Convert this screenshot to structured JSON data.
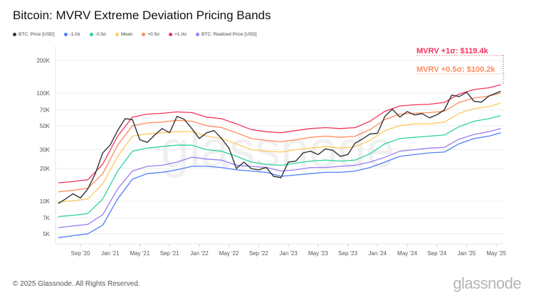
{
  "chart_data": {
    "type": "line",
    "title": "Bitcoin: MVRV Extreme Deviation Pricing Bands",
    "y_scale": "log",
    "ylim": [
      4000,
      260000
    ],
    "y_ticks": [
      {
        "v": 200000,
        "label": "200K"
      },
      {
        "v": 100000,
        "label": "100K"
      },
      {
        "v": 70000,
        "label": "70K"
      },
      {
        "v": 50000,
        "label": "50K"
      },
      {
        "v": 30000,
        "label": "30K"
      },
      {
        "v": 20000,
        "label": "20K"
      },
      {
        "v": 10000,
        "label": "10K"
      },
      {
        "v": 7000,
        "label": "7K"
      },
      {
        "v": 5000,
        "label": "5K"
      }
    ],
    "x_ticks": [
      "Sep '20",
      "Jan '21",
      "May '21",
      "Sep '21",
      "Jan '22",
      "May '22",
      "Sep '22",
      "Jan '23",
      "May '23",
      "Sep '23",
      "Jan '24",
      "May '24",
      "Sep '24",
      "Jan '25",
      "May '25"
    ],
    "x_tick_dates": [
      "2020-09",
      "2021-01",
      "2021-05",
      "2021-09",
      "2022-01",
      "2022-05",
      "2022-09",
      "2023-01",
      "2023-05",
      "2023-09",
      "2024-01",
      "2024-05",
      "2024-09",
      "2025-01",
      "2025-05"
    ],
    "grid": true,
    "legend": "top-left",
    "price_dates": [
      "2020-06",
      "2020-07",
      "2020-08",
      "2020-09",
      "2020-10",
      "2020-11",
      "2020-12",
      "2021-01",
      "2021-02",
      "2021-03",
      "2021-04",
      "2021-05",
      "2021-06",
      "2021-07",
      "2021-08",
      "2021-09",
      "2021-10",
      "2021-11",
      "2021-12",
      "2022-01",
      "2022-02",
      "2022-03",
      "2022-04",
      "2022-05",
      "2022-06",
      "2022-07",
      "2022-08",
      "2022-09",
      "2022-10",
      "2022-11",
      "2022-12",
      "2023-01",
      "2023-02",
      "2023-03",
      "2023-04",
      "2023-05",
      "2023-06",
      "2023-07",
      "2023-08",
      "2023-09",
      "2023-10",
      "2023-11",
      "2023-12",
      "2024-01",
      "2024-02",
      "2024-03",
      "2024-04",
      "2024-05",
      "2024-06",
      "2024-07",
      "2024-08",
      "2024-09",
      "2024-10",
      "2024-11",
      "2024-12",
      "2025-01",
      "2025-02",
      "2025-03",
      "2025-04",
      "2025-05"
    ],
    "band_dates": [
      "2020-06",
      "2020-08",
      "2020-10",
      "2020-12",
      "2021-02",
      "2021-04",
      "2021-06",
      "2021-08",
      "2021-10",
      "2021-12",
      "2022-02",
      "2022-04",
      "2022-06",
      "2022-08",
      "2022-10",
      "2022-12",
      "2023-02",
      "2023-04",
      "2023-06",
      "2023-08",
      "2023-10",
      "2023-12",
      "2024-02",
      "2024-04",
      "2024-06",
      "2024-08",
      "2024-10",
      "2024-12",
      "2025-02",
      "2025-04",
      "2025-05"
    ],
    "series": [
      {
        "name": "BTC: Price [USD]",
        "color": "#333333",
        "dates": "price_dates",
        "values": [
          9500,
          10500,
          11700,
          10700,
          13000,
          18000,
          28000,
          33000,
          45000,
          58000,
          57000,
          37000,
          35000,
          41000,
          47000,
          43000,
          61000,
          57000,
          47000,
          38000,
          43000,
          45000,
          38000,
          31000,
          20000,
          23000,
          20000,
          19500,
          20500,
          17000,
          16500,
          23000,
          23500,
          28000,
          29000,
          27000,
          30500,
          29500,
          26000,
          27000,
          34500,
          37700,
          42000,
          42500,
          61000,
          71000,
          60000,
          67500,
          62700,
          64600,
          59000,
          63000,
          70000,
          96000,
          93000,
          102000,
          84000,
          82500,
          94000,
          104000
        ]
      },
      {
        "name": "-1.0σ",
        "color": "#4f7df5",
        "dates": "band_dates",
        "values": [
          4600,
          4800,
          5000,
          6000,
          10500,
          16000,
          18000,
          18500,
          19500,
          21000,
          21000,
          20500,
          19500,
          19000,
          18500,
          17000,
          17500,
          18000,
          18500,
          18500,
          19000,
          20500,
          23000,
          26000,
          27000,
          28000,
          28500,
          34000,
          38000,
          40000,
          43000
        ]
      },
      {
        "name": "-0.5σ",
        "color": "#2ed3a2",
        "dates": "band_dates",
        "values": [
          7200,
          7400,
          7700,
          10500,
          19000,
          29000,
          31000,
          32000,
          33000,
          33000,
          30000,
          29000,
          26000,
          23000,
          22000,
          21500,
          22500,
          23500,
          24000,
          23500,
          24000,
          27500,
          34000,
          38000,
          39000,
          40000,
          41000,
          49000,
          55000,
          58000,
          62000
        ]
      },
      {
        "name": "Mean",
        "color": "#ffc95e",
        "dates": "band_dates",
        "values": [
          9800,
          10100,
          10500,
          14500,
          26000,
          40000,
          42000,
          43000,
          44000,
          44000,
          40000,
          38000,
          34000,
          30000,
          29000,
          28500,
          30000,
          31000,
          32000,
          31000,
          32000,
          36500,
          45000,
          50000,
          52000,
          52000,
          54000,
          65000,
          72000,
          75000,
          81000
        ]
      },
      {
        "name": "+0.5σ",
        "color": "#ff8a5c",
        "dates": "band_dates",
        "values": [
          12200,
          12600,
          13200,
          18000,
          33000,
          50000,
          53000,
          54000,
          56000,
          55000,
          50000,
          48000,
          43000,
          38000,
          36500,
          35500,
          37000,
          39000,
          40000,
          39000,
          40000,
          46000,
          57000,
          64000,
          65000,
          66000,
          68000,
          82000,
          90000,
          94000,
          100200
        ]
      },
      {
        "name": "+1.0σ",
        "color": "#f2325b",
        "dates": "band_dates",
        "values": [
          14800,
          15200,
          15800,
          22000,
          40000,
          60000,
          64000,
          65000,
          67000,
          66000,
          60000,
          58000,
          52000,
          46000,
          44000,
          43000,
          45000,
          47000,
          48000,
          47000,
          48000,
          55000,
          68000,
          76000,
          78000,
          79000,
          82000,
          98000,
          108000,
          112000,
          119400
        ]
      },
      {
        "name": "BTC: Realized Price [USD]",
        "color": "#9b7cf6",
        "dates": "band_dates",
        "values": [
          5700,
          5900,
          6100,
          7500,
          13000,
          19000,
          21000,
          21500,
          23000,
          25500,
          24500,
          24000,
          21500,
          21000,
          20500,
          19000,
          19500,
          20500,
          20500,
          21000,
          21500,
          23000,
          25500,
          29000,
          30000,
          31000,
          31500,
          37500,
          41500,
          44000,
          47000
        ]
      }
    ],
    "annotations": [
      {
        "text": "MVRV +1σ: $119.4k",
        "color": "#f2325b",
        "value": 119400
      },
      {
        "text": "MVRV +0.5σ: $100.2k",
        "color": "#ff8a5c",
        "value": 100200
      }
    ]
  },
  "watermark": "glassnode",
  "footer": {
    "copyright": "© 2025 Glassnode. All Rights Reserved.",
    "logo": "glassnode"
  }
}
